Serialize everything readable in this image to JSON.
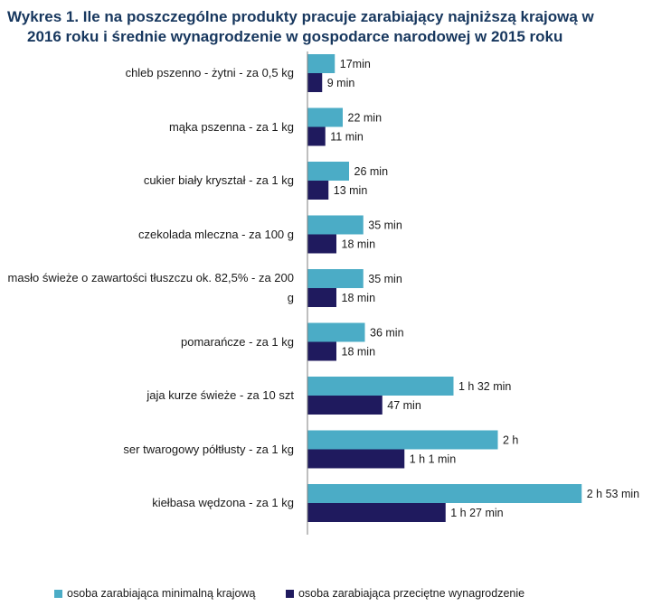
{
  "title": {
    "line1": "Wykres 1. Ile na poszczególne produkty pracuje zarabiający najniższą krajową w",
    "line2": "2016 roku  i średnie wynagrodzenie w gospodarce narodowej w 2015 roku"
  },
  "colors": {
    "minimal": "#4bacc6",
    "average": "#1f1a5e",
    "axis": "#7f7f7f"
  },
  "chart_data": {
    "type": "bar",
    "orientation": "horizontal",
    "title": "Wykres 1. Ile na poszczególne produkty pracuje zarabiający najniższą krajową w 2016 roku  i średnie wynagrodzenie w gospodarce narodowej w 2015 roku",
    "xlabel": "",
    "ylabel": "",
    "unit": "minutes",
    "xlim": [
      0,
      180
    ],
    "categories": [
      "chleb pszenno - żytni - za 0,5 kg",
      "mąka pszenna - za 1 kg",
      "cukier biały kryształ - za 1 kg",
      "czekolada mleczna - za 100 g",
      "masło świeże o zawartości tłuszczu ok. 82,5% - za 200 g",
      "pomarańcze - za 1 kg",
      "jaja kurze świeże - za 10 szt",
      "ser twarogowy półtłusty - za 1 kg",
      "kiełbasa wędzona - za 1 kg"
    ],
    "series": [
      {
        "name": "osoba zarabiająca minimalną krajową",
        "values": [
          17,
          22,
          26,
          35,
          35,
          36,
          92,
          120,
          173
        ],
        "labels": [
          "17min",
          "22 min",
          "26 min",
          "35 min",
          "35 min",
          "36 min",
          "1 h 32 min",
          "2 h",
          "2 h 53 min"
        ]
      },
      {
        "name": "osoba zarabiająca przeciętne wynagrodzenie",
        "values": [
          9,
          11,
          13,
          18,
          18,
          18,
          47,
          61,
          87
        ],
        "labels": [
          "9 min",
          "11 min",
          "13 min",
          "18 min",
          "18 min",
          "18 min",
          "47 min",
          "1 h 1 min",
          "1 h 27 min"
        ]
      }
    ],
    "legend_position": "bottom"
  }
}
